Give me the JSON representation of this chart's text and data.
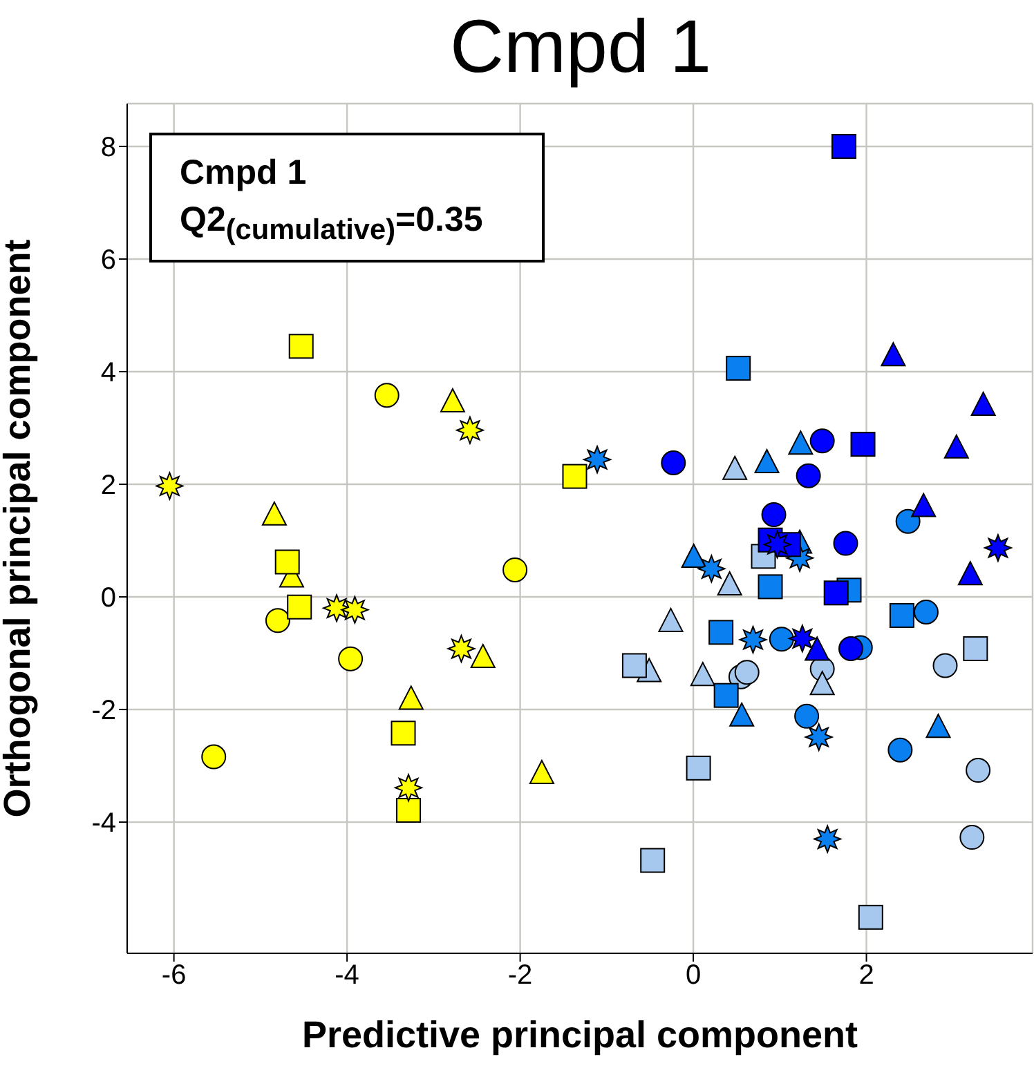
{
  "chart_data": {
    "type": "scatter",
    "title": "Cmpd 1",
    "xlabel": "Predictive principal component",
    "ylabel": "Orthogonal principal component",
    "annotations": [
      "Cmpd 1",
      "Q2$_{(cumulative)}$=0.35"
    ],
    "xlim": [
      -6.54,
      3.92
    ],
    "ylim": [
      -6.33,
      8.76
    ],
    "xticks": [
      -6,
      -4,
      -2,
      0,
      2
    ],
    "yticks": [
      -4,
      -2,
      0,
      2,
      4,
      6,
      8
    ],
    "grid": true,
    "series": [
      {
        "color": "#ffff00",
        "marker": "circle",
        "x": [
          -3.54,
          -2.06,
          -4.8,
          -3.96,
          -5.54
        ],
        "values": [
          3.58,
          0.48,
          -0.42,
          -1.1,
          -2.84
        ]
      },
      {
        "color": "#ffff00",
        "marker": "triangle",
        "x": [
          -2.78,
          -4.84,
          -4.64,
          -2.43,
          -3.26,
          -1.75
        ],
        "values": [
          3.46,
          1.45,
          0.35,
          -1.08,
          -1.82,
          -3.14
        ]
      },
      {
        "color": "#ffff00",
        "marker": "square",
        "x": [
          -4.53,
          -1.37,
          -4.69,
          -4.55,
          -3.35,
          -3.29
        ],
        "values": [
          4.45,
          2.14,
          0.62,
          -0.18,
          -2.42,
          -3.79
        ]
      },
      {
        "color": "#ffff00",
        "marker": "star",
        "x": [
          -6.05,
          -2.58,
          -4.12,
          -3.91,
          -2.68,
          -3.29
        ],
        "values": [
          1.97,
          2.96,
          -0.2,
          -0.23,
          -0.92,
          -3.39
        ]
      },
      {
        "color": "#a6c8ee",
        "marker": "circle",
        "x": [
          2.91,
          0.55,
          0.62,
          1.49,
          3.29,
          3.22
        ],
        "values": [
          -1.22,
          -1.42,
          -1.34,
          -1.28,
          -3.08,
          -4.27
        ]
      },
      {
        "color": "#a6c8ee",
        "marker": "triangle",
        "x": [
          0.48,
          0.42,
          -0.26,
          -0.51,
          0.11,
          1.49
        ],
        "values": [
          2.26,
          0.21,
          -0.44,
          -1.33,
          -1.4,
          -1.56
        ]
      },
      {
        "color": "#a6c8ee",
        "marker": "square",
        "x": [
          0.81,
          3.26,
          -0.68,
          0.06,
          -0.47,
          2.05
        ],
        "values": [
          0.72,
          -0.92,
          -1.22,
          -3.04,
          -4.68,
          -5.69
        ]
      },
      {
        "color": "#0a80f0",
        "marker": "circle",
        "x": [
          2.48,
          2.69,
          1.02,
          1.93,
          1.31,
          2.39
        ],
        "values": [
          1.34,
          -0.27,
          -0.75,
          -0.9,
          -2.12,
          -2.72
        ]
      },
      {
        "color": "#0a80f0",
        "marker": "triangle",
        "x": [
          0.85,
          1.24,
          0.005,
          1.23,
          0.56,
          2.83
        ],
        "values": [
          2.38,
          2.71,
          0.7,
          0.95,
          -2.12,
          -2.32
        ]
      },
      {
        "color": "#0a80f0",
        "marker": "square",
        "x": [
          0.52,
          0.89,
          1.8,
          2.41,
          0.32,
          0.38
        ],
        "values": [
          4.06,
          0.18,
          0.12,
          -0.33,
          -0.63,
          -1.75
        ]
      },
      {
        "color": "#0a80f0",
        "marker": "star",
        "x": [
          -1.11,
          0.21,
          1.23,
          0.69,
          1.45,
          1.55
        ],
        "values": [
          2.44,
          0.5,
          0.69,
          -0.76,
          -2.49,
          -4.3
        ]
      },
      {
        "color": "#0000ff",
        "marker": "circle",
        "x": [
          -0.23,
          1.49,
          1.33,
          0.93,
          1.76,
          1.82
        ],
        "values": [
          2.38,
          2.77,
          2.15,
          1.46,
          0.95,
          -0.92
        ]
      },
      {
        "color": "#0000ff",
        "marker": "triangle",
        "x": [
          2.31,
          3.35,
          3.04,
          2.66,
          3.2,
          1.43
        ],
        "values": [
          4.28,
          3.4,
          2.64,
          1.6,
          0.39,
          -0.95
        ]
      },
      {
        "color": "#0000ff",
        "marker": "square",
        "x": [
          1.74,
          1.96,
          0.89,
          1.1,
          1.65
        ],
        "values": [
          8.0,
          2.71,
          1.01,
          0.93,
          0.07
        ]
      },
      {
        "color": "#0000ff",
        "marker": "star",
        "x": [
          3.52,
          0.97,
          1.26
        ],
        "values": [
          0.87,
          0.93,
          -0.74
        ]
      }
    ]
  }
}
